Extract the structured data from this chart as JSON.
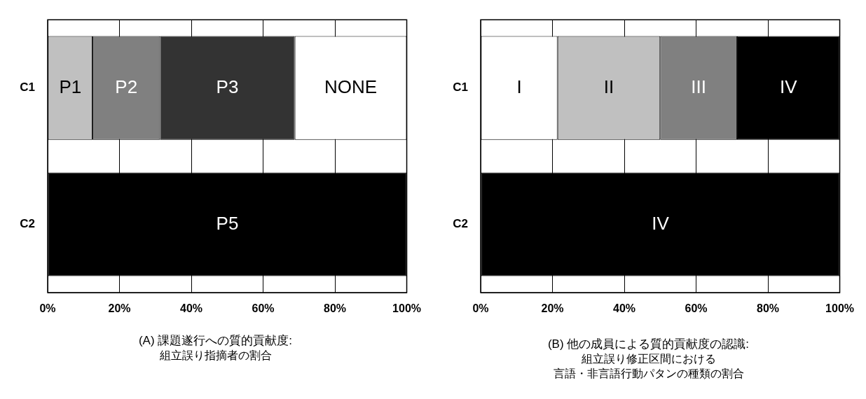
{
  "chart_data": [
    {
      "type": "bar",
      "orientation": "horizontal",
      "stacked": true,
      "title": "(A) 課題遂行への質的貢献度:",
      "subtitle": "組立誤り指摘者の割合",
      "categories": [
        "C1",
        "C2"
      ],
      "series": [
        {
          "name": "P1",
          "color": "#c0c0c0",
          "values": [
            12.5,
            null
          ]
        },
        {
          "name": "P2",
          "color": "#808080",
          "values": [
            18.8,
            null
          ]
        },
        {
          "name": "P3",
          "color": "#333333",
          "values": [
            37.5,
            null
          ]
        },
        {
          "name": "NONE",
          "color": "#ffffff",
          "values": [
            31.2,
            null
          ]
        },
        {
          "name": "P5",
          "color": "#000000",
          "values": [
            null,
            100
          ]
        }
      ],
      "xlim": [
        0,
        100
      ],
      "xticks": [
        {
          "value": 0,
          "label": "0%"
        },
        {
          "value": 20,
          "label": "20%"
        },
        {
          "value": 40,
          "label": "40%"
        },
        {
          "value": 60,
          "label": "60%"
        },
        {
          "value": 80,
          "label": "80%"
        },
        {
          "value": 100,
          "label": "100%"
        }
      ],
      "grid": "x"
    },
    {
      "type": "bar",
      "orientation": "horizontal",
      "stacked": true,
      "title": "(B) 他の成員による質的貢献度の認識:",
      "subtitle": "組立誤り修正区間における",
      "annotations": [
        "言語・非言語行動パタンの種類の割合"
      ],
      "categories": [
        "C1",
        "C2"
      ],
      "series": [
        {
          "name": "I",
          "color": "#ffffff",
          "values": [
            21.4,
            null
          ]
        },
        {
          "name": "II",
          "color": "#c0c0c0",
          "values": [
            28.6,
            null
          ]
        },
        {
          "name": "III",
          "color": "#808080",
          "values": [
            21.4,
            null
          ]
        },
        {
          "name": "IV",
          "color": "#000000",
          "values": [
            28.6,
            100
          ]
        }
      ],
      "xlim": [
        0,
        100
      ],
      "xticks": [
        {
          "value": 0,
          "label": "0%"
        },
        {
          "value": 20,
          "label": "20%"
        },
        {
          "value": 40,
          "label": "40%"
        },
        {
          "value": 60,
          "label": "60%"
        },
        {
          "value": 80,
          "label": "80%"
        },
        {
          "value": 100,
          "label": "100%"
        }
      ],
      "grid": "x"
    }
  ]
}
